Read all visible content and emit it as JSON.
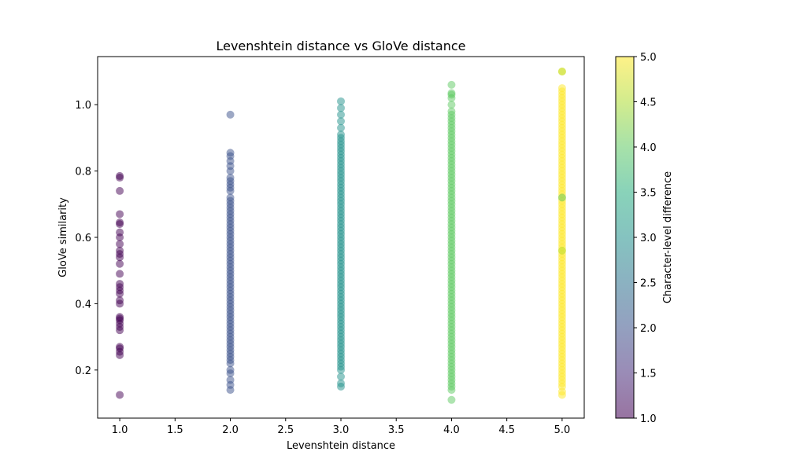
{
  "chart_data": {
    "type": "scatter",
    "title": "Levenshtein distance vs GloVe distance",
    "xlabel": "Levenshtein distance",
    "ylabel": "GloVe similarity",
    "xlim": [
      0.8,
      5.2
    ],
    "ylim": [
      0.055,
      1.145
    ],
    "xticks": [
      1.0,
      1.5,
      2.0,
      2.5,
      3.0,
      3.5,
      4.0,
      4.5,
      5.0
    ],
    "xtick_labels": [
      "1.0",
      "1.5",
      "2.0",
      "2.5",
      "3.0",
      "3.5",
      "4.0",
      "4.5",
      "5.0"
    ],
    "yticks": [
      0.2,
      0.4,
      0.6,
      0.8,
      1.0
    ],
    "ytick_labels": [
      "0.2",
      "0.4",
      "0.6",
      "0.8",
      "1.0"
    ],
    "grid": false,
    "colormap": "viridis",
    "marker_alpha": 0.5,
    "colorbar": {
      "label": "Character-level difference",
      "range": [
        1.0,
        5.0
      ],
      "ticks": [
        1.0,
        1.5,
        2.0,
        2.5,
        3.0,
        3.5,
        4.0,
        4.5,
        5.0
      ],
      "tick_labels": [
        "1.0",
        "1.5",
        "2.0",
        "2.5",
        "3.0",
        "3.5",
        "4.0",
        "4.5",
        "5.0"
      ]
    },
    "series": [
      {
        "x": 1.0,
        "color_value": 1.0,
        "color": "#440154",
        "y": [
          0.125,
          0.245,
          0.255,
          0.265,
          0.27,
          0.32,
          0.33,
          0.34,
          0.35,
          0.355,
          0.36,
          0.4,
          0.41,
          0.43,
          0.44,
          0.45,
          0.46,
          0.49,
          0.52,
          0.54,
          0.55,
          0.56,
          0.58,
          0.6,
          0.615,
          0.64,
          0.645,
          0.67,
          0.74,
          0.78,
          0.785
        ]
      },
      {
        "x": 2.0,
        "color_value": 2.0,
        "color": "#3b528b",
        "y": [
          0.14,
          0.155,
          0.17,
          0.19,
          0.2,
          0.22,
          0.23,
          0.24,
          0.25,
          0.26,
          0.27,
          0.28,
          0.29,
          0.3,
          0.31,
          0.32,
          0.33,
          0.34,
          0.35,
          0.36,
          0.37,
          0.38,
          0.39,
          0.4,
          0.41,
          0.42,
          0.43,
          0.44,
          0.45,
          0.46,
          0.47,
          0.48,
          0.49,
          0.5,
          0.51,
          0.52,
          0.53,
          0.54,
          0.55,
          0.56,
          0.57,
          0.58,
          0.59,
          0.6,
          0.61,
          0.62,
          0.63,
          0.64,
          0.65,
          0.66,
          0.67,
          0.68,
          0.69,
          0.7,
          0.71,
          0.72,
          0.74,
          0.75,
          0.76,
          0.77,
          0.78,
          0.8,
          0.815,
          0.83,
          0.845,
          0.855,
          0.97
        ]
      },
      {
        "x": 3.0,
        "color_value": 3.0,
        "color": "#21918c",
        "y": [
          0.15,
          0.16,
          0.18,
          0.2,
          0.21,
          0.22,
          0.23,
          0.24,
          0.25,
          0.26,
          0.27,
          0.28,
          0.29,
          0.3,
          0.31,
          0.32,
          0.33,
          0.34,
          0.35,
          0.36,
          0.37,
          0.38,
          0.39,
          0.4,
          0.41,
          0.42,
          0.43,
          0.44,
          0.45,
          0.46,
          0.47,
          0.48,
          0.49,
          0.5,
          0.51,
          0.52,
          0.53,
          0.54,
          0.55,
          0.56,
          0.57,
          0.58,
          0.59,
          0.6,
          0.61,
          0.62,
          0.63,
          0.64,
          0.65,
          0.66,
          0.67,
          0.68,
          0.69,
          0.7,
          0.71,
          0.72,
          0.73,
          0.74,
          0.75,
          0.76,
          0.77,
          0.78,
          0.79,
          0.8,
          0.81,
          0.82,
          0.83,
          0.84,
          0.85,
          0.86,
          0.87,
          0.88,
          0.89,
          0.9,
          0.91,
          0.93,
          0.95,
          0.97,
          0.99,
          1.01
        ]
      },
      {
        "x": 4.0,
        "color_value": 4.0,
        "color": "#5ec962",
        "y": [
          0.11,
          0.14,
          0.15,
          0.16,
          0.17,
          0.18,
          0.19,
          0.2,
          0.21,
          0.22,
          0.23,
          0.24,
          0.25,
          0.26,
          0.27,
          0.28,
          0.29,
          0.3,
          0.31,
          0.32,
          0.33,
          0.34,
          0.35,
          0.36,
          0.37,
          0.38,
          0.39,
          0.4,
          0.41,
          0.42,
          0.43,
          0.44,
          0.45,
          0.46,
          0.47,
          0.48,
          0.49,
          0.5,
          0.51,
          0.52,
          0.53,
          0.54,
          0.55,
          0.56,
          0.57,
          0.58,
          0.59,
          0.6,
          0.61,
          0.62,
          0.63,
          0.64,
          0.65,
          0.66,
          0.67,
          0.68,
          0.69,
          0.7,
          0.71,
          0.72,
          0.73,
          0.74,
          0.75,
          0.76,
          0.77,
          0.78,
          0.79,
          0.8,
          0.81,
          0.82,
          0.83,
          0.84,
          0.85,
          0.86,
          0.87,
          0.88,
          0.89,
          0.9,
          0.91,
          0.92,
          0.93,
          0.94,
          0.95,
          0.96,
          0.97,
          0.98,
          1.0,
          1.02,
          1.03,
          1.035,
          1.06
        ]
      },
      {
        "x": 5.0,
        "color_value": 5.0,
        "color": "#fde725",
        "y": [
          0.125,
          0.135,
          0.15,
          0.16,
          0.17,
          0.18,
          0.19,
          0.2,
          0.21,
          0.22,
          0.23,
          0.24,
          0.25,
          0.26,
          0.27,
          0.28,
          0.29,
          0.3,
          0.31,
          0.32,
          0.33,
          0.34,
          0.35,
          0.36,
          0.37,
          0.38,
          0.39,
          0.4,
          0.41,
          0.42,
          0.43,
          0.44,
          0.45,
          0.46,
          0.47,
          0.48,
          0.49,
          0.5,
          0.51,
          0.52,
          0.53,
          0.54,
          0.55,
          0.56,
          0.57,
          0.58,
          0.59,
          0.6,
          0.61,
          0.62,
          0.63,
          0.64,
          0.65,
          0.66,
          0.67,
          0.68,
          0.69,
          0.7,
          0.71,
          0.72,
          0.73,
          0.74,
          0.75,
          0.76,
          0.77,
          0.78,
          0.79,
          0.8,
          0.81,
          0.82,
          0.83,
          0.84,
          0.85,
          0.86,
          0.87,
          0.88,
          0.89,
          0.9,
          0.91,
          0.92,
          0.93,
          0.94,
          0.95,
          0.96,
          0.97,
          0.98,
          0.99,
          1.0,
          1.01,
          1.02,
          1.03,
          1.04,
          1.05,
          1.1
        ]
      }
    ],
    "outliers": [
      {
        "x": 5.0,
        "y": 0.72,
        "color": "#5ec962"
      },
      {
        "x": 5.0,
        "y": 1.1,
        "color": "#b5de2b"
      },
      {
        "x": 5.0,
        "y": 0.56,
        "color": "#b5de2b"
      }
    ]
  }
}
